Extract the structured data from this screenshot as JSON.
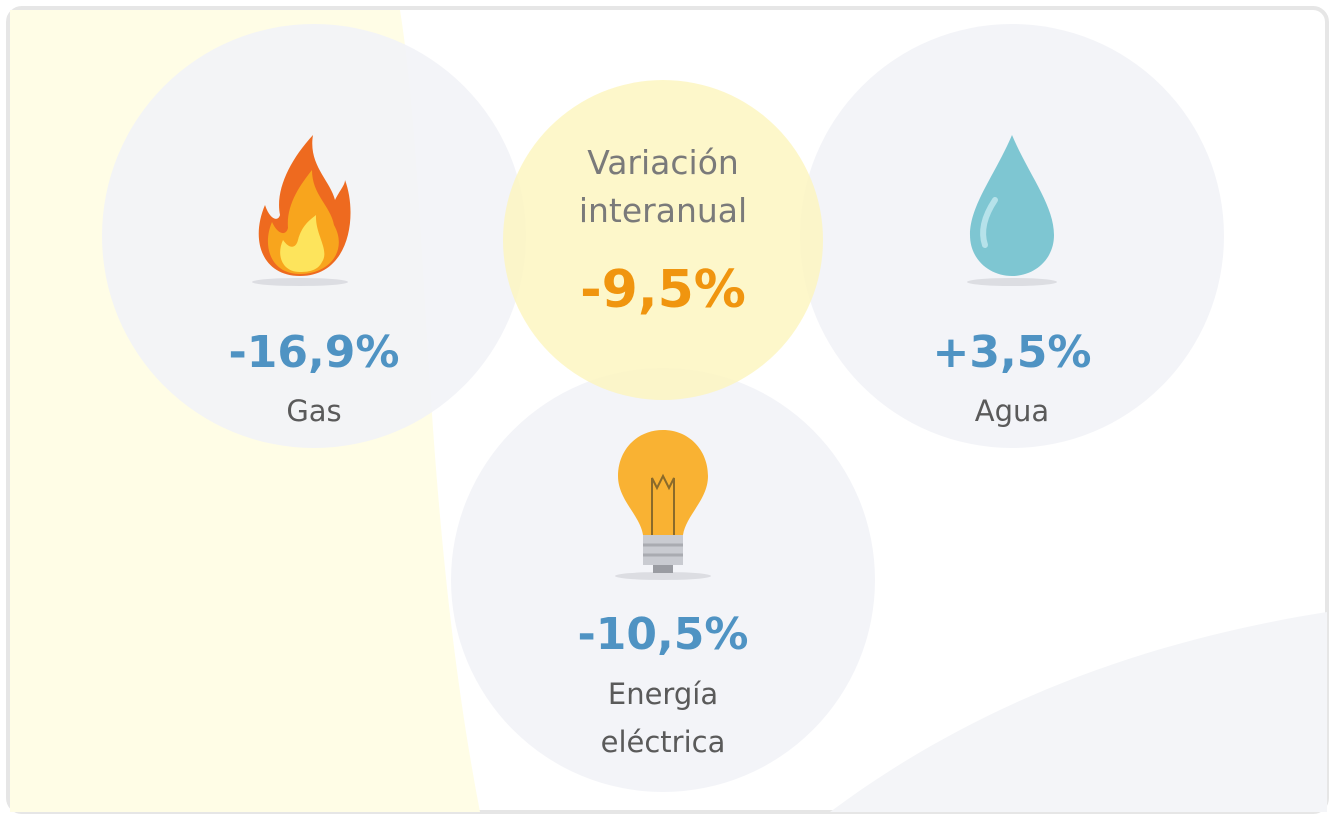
{
  "summary": {
    "label": "Variación interanual",
    "value": "-9,5%"
  },
  "items": [
    {
      "value": "-16,9%",
      "label": "Gas"
    },
    {
      "value": "+3,5%",
      "label": "Agua"
    },
    {
      "value": "-10,5%",
      "label": "Energía eléctrica"
    }
  ]
}
